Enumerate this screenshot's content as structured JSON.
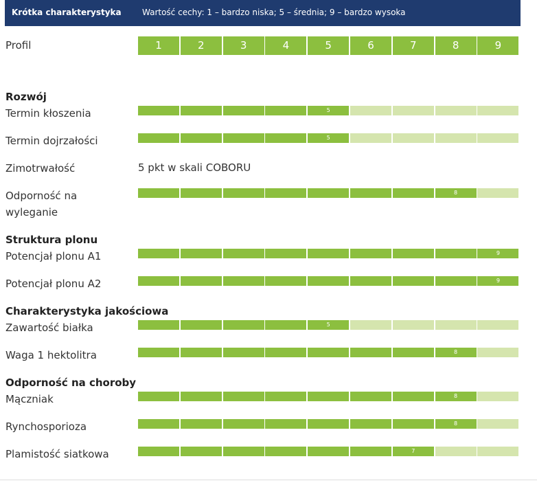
{
  "header": {
    "title": "Krótka charakterystyka",
    "scale_description": "Wartość cechy: 1 – bardzo niska; 5 – średnia; 9 – bardzo wysoka"
  },
  "profile": {
    "label": "Profil",
    "levels": [
      "1",
      "2",
      "3",
      "4",
      "5",
      "6",
      "7",
      "8",
      "9"
    ]
  },
  "colors": {
    "header_bg": "#1f3b6f",
    "filled": "#8cbf3f",
    "empty": "#d5e5ae"
  },
  "chart_data": {
    "type": "bar",
    "scale_max": 9,
    "sections": [
      {
        "title": "Rozwój",
        "rows": [
          {
            "label": "Termin kłoszenia",
            "value": 5
          },
          {
            "label": "Termin dojrzałości",
            "value": 5
          },
          {
            "label": "Zimotrwałość",
            "text": "5 pkt w skali COBORU"
          },
          {
            "label": "Odporność na wyleganie",
            "value": 8
          }
        ]
      },
      {
        "title": "Struktura plonu",
        "rows": [
          {
            "label": "Potencjał plonu A1",
            "value": 9
          },
          {
            "label": "Potencjał plonu A2",
            "value": 9
          }
        ]
      },
      {
        "title": "Charakterystyka jakościowa",
        "rows": [
          {
            "label": "Zawartość białka",
            "value": 5
          },
          {
            "label": "Waga 1 hektolitra",
            "value": 8
          }
        ]
      },
      {
        "title": "Odporność na choroby",
        "rows": [
          {
            "label": "Mączniak",
            "value": 8
          },
          {
            "label": "Rynchosporioza",
            "value": 8
          },
          {
            "label": "Plamistość siatkowa",
            "value": 7
          }
        ]
      }
    ]
  }
}
